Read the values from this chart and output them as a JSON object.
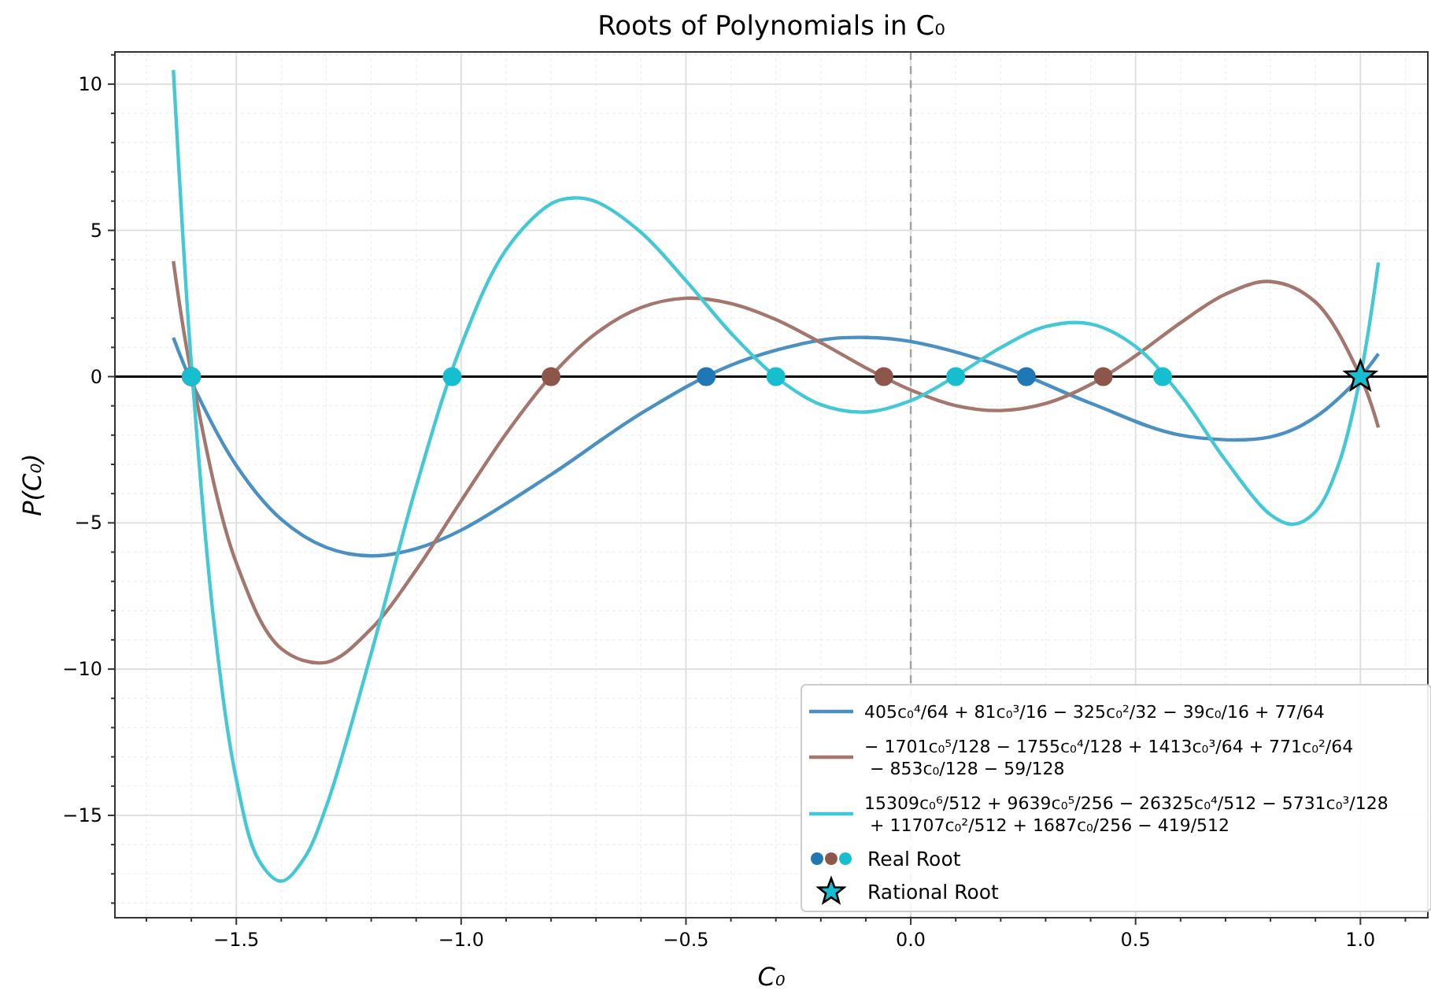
{
  "chart_data": {
    "type": "line",
    "title": "Roots of Polynomials in C₀",
    "xlabel": "C₀",
    "ylabel": "P(C₀)",
    "xlim": [
      -1.77,
      1.15
    ],
    "ylim": [
      -18.5,
      11.1
    ],
    "xticks": [
      {
        "value": -1.7,
        "label": null
      },
      {
        "value": -1.6,
        "label": null
      },
      {
        "value": -1.5,
        "label": "−1.5"
      },
      {
        "value": -1.4,
        "label": null
      },
      {
        "value": -1.3,
        "label": null
      },
      {
        "value": -1.2,
        "label": null
      },
      {
        "value": -1.1,
        "label": null
      },
      {
        "value": -1.0,
        "label": "−1.0"
      },
      {
        "value": -0.9,
        "label": null
      },
      {
        "value": -0.8,
        "label": null
      },
      {
        "value": -0.7,
        "label": null
      },
      {
        "value": -0.6,
        "label": null
      },
      {
        "value": -0.5,
        "label": "−0.5"
      },
      {
        "value": -0.4,
        "label": null
      },
      {
        "value": -0.3,
        "label": null
      },
      {
        "value": -0.2,
        "label": null
      },
      {
        "value": -0.1,
        "label": null
      },
      {
        "value": 0,
        "label": "0.0"
      },
      {
        "value": 0.1,
        "label": null
      },
      {
        "value": 0.2,
        "label": null
      },
      {
        "value": 0.3,
        "label": null
      },
      {
        "value": 0.4,
        "label": null
      },
      {
        "value": 0.5,
        "label": "0.5"
      },
      {
        "value": 0.6,
        "label": null
      },
      {
        "value": 0.7,
        "label": null
      },
      {
        "value": 0.8,
        "label": null
      },
      {
        "value": 0.9,
        "label": null
      },
      {
        "value": 1.0,
        "label": "1.0"
      },
      {
        "value": 1.1,
        "label": null
      }
    ],
    "yticks": [
      {
        "value": -18,
        "label": null
      },
      {
        "value": -17,
        "label": null
      },
      {
        "value": -16,
        "label": null
      },
      {
        "value": -15,
        "label": "−15"
      },
      {
        "value": -14,
        "label": null
      },
      {
        "value": -13,
        "label": null
      },
      {
        "value": -12,
        "label": null
      },
      {
        "value": -11,
        "label": null
      },
      {
        "value": -10,
        "label": "−10"
      },
      {
        "value": -9,
        "label": null
      },
      {
        "value": -8,
        "label": null
      },
      {
        "value": -7,
        "label": null
      },
      {
        "value": -6,
        "label": null
      },
      {
        "value": -5,
        "label": "−5"
      },
      {
        "value": -4,
        "label": null
      },
      {
        "value": -3,
        "label": null
      },
      {
        "value": -2,
        "label": null
      },
      {
        "value": -1,
        "label": null
      },
      0,
      {
        "value": 1,
        "label": null
      },
      {
        "value": 2,
        "label": null
      },
      {
        "value": 3,
        "label": null
      },
      {
        "value": 4,
        "label": null
      },
      5,
      {
        "value": 6,
        "label": null
      },
      {
        "value": 7,
        "label": null
      },
      {
        "value": 8,
        "label": null
      },
      {
        "value": 9,
        "label": null
      },
      10,
      {
        "value": 11,
        "label": null
      }
    ],
    "grid": true,
    "legend": "bottom right",
    "marker": "none",
    "line_style": "solid",
    "ref_lines": [
      {
        "axis": "y",
        "value": 0,
        "color": "#000000",
        "line_style": "solid"
      },
      {
        "axis": "x",
        "value": 0,
        "color": "#a0a0a0",
        "line_style": "dashed"
      }
    ],
    "series": [
      {
        "name": "405c₀⁴/64 + 81c₀³/16 − 325c₀²/32 − 39c₀/16 + 77/64",
        "color": "#4a90c2",
        "x": [
          -1.64,
          -1.6,
          -1.5,
          -1.4,
          -1.3,
          -1.2,
          -1.1,
          -1.0,
          -0.8,
          -0.6,
          -0.4,
          -0.2,
          -0.1,
          0,
          0.2,
          0.4,
          0.6,
          0.8,
          0.9,
          1.0,
          1.04
        ],
        "values": [
          1.33,
          -0.17,
          -3.04,
          -4.88,
          -5.84,
          -6.13,
          -5.88,
          -5.25,
          -3.35,
          -1.26,
          0.39,
          1.25,
          1.34,
          1.2,
          0.36,
          -0.91,
          -2.0,
          -2.06,
          -1.38,
          0,
          0.78
        ]
      },
      {
        "name": "− 1701c₀⁵/128 − 1755c₀⁴/128 + 1413c₀³/64 + 771c₀²/64 − 853c₀/128 − 59/128",
        "color": "#a3776d",
        "x": [
          -1.64,
          -1.6,
          -1.5,
          -1.4,
          -1.3,
          -1.2,
          -1.1,
          -1.0,
          -0.9,
          -0.8,
          -0.7,
          -0.6,
          -0.5,
          -0.4,
          -0.3,
          -0.2,
          -0.1,
          0,
          0.1,
          0.2,
          0.3,
          0.4,
          0.5,
          0.6,
          0.7,
          0.8,
          0.9,
          1.0,
          1.04
        ],
        "values": [
          3.95,
          0.1,
          -6.37,
          -9.3,
          -9.77,
          -8.62,
          -6.61,
          -4.25,
          -1.95,
          0.02,
          1.48,
          2.36,
          2.68,
          2.5,
          1.95,
          1.16,
          0.3,
          -0.46,
          -0.99,
          -1.16,
          -0.92,
          -0.27,
          0.71,
          1.84,
          2.82,
          3.25,
          2.55,
          0,
          -1.74
        ]
      },
      {
        "name": "15309c₀⁶/512 + 9639c₀⁵/256 − 26325c₀⁴/512 − 5731c₀³/128 + 11707c₀²/512 + 1687c₀/256 − 419/512",
        "color": "#44c8d6",
        "x": [
          -1.64,
          -1.62,
          -1.6,
          -1.55,
          -1.5,
          -1.45,
          -1.4,
          -1.35,
          -1.3,
          -1.2,
          -1.1,
          -1.0,
          -0.9,
          -0.8,
          -0.75,
          -0.7,
          -0.6,
          -0.5,
          -0.4,
          -0.3,
          -0.2,
          -0.1,
          0,
          0.1,
          0.2,
          0.3,
          0.4,
          0.5,
          0.6,
          0.7,
          0.8,
          0.85,
          0.9,
          0.95,
          1.0,
          1.04
        ],
        "values": [
          10.48,
          5.09,
          0.42,
          -8.37,
          -13.77,
          -16.53,
          -17.25,
          -16.49,
          -14.7,
          -9.46,
          -3.76,
          1.06,
          4.34,
          5.91,
          6.11,
          5.98,
          4.93,
          3.28,
          1.49,
          -0.01,
          -0.96,
          -1.21,
          -0.82,
          0.02,
          0.99,
          1.71,
          1.8,
          1.03,
          -0.64,
          -2.86,
          -4.72,
          -5.05,
          -4.62,
          -3.07,
          0,
          3.9
        ]
      },
      {
        "name": "Real Root",
        "type": "scatter",
        "marker": "circle",
        "x": [
          -1.6,
          -0.455,
          0.257,
          -1.6,
          -0.8,
          -0.06,
          0.428,
          -1.6,
          -1.02,
          -0.3,
          0.1,
          0.56
        ],
        "values": [
          0,
          0,
          0,
          0,
          0,
          0,
          0,
          0,
          0,
          0,
          0,
          0
        ],
        "colors": [
          "#1f77b4",
          "#1f77b4",
          "#1f77b4",
          "#8c564b",
          "#8c564b",
          "#8c564b",
          "#8c564b",
          "#17becf",
          "#17becf",
          "#17becf",
          "#17becf",
          "#17becf"
        ]
      },
      {
        "name": "Rational Root",
        "type": "scatter",
        "marker": "star",
        "x": [
          1.0
        ],
        "values": [
          0
        ],
        "colors": [
          "#17becf"
        ]
      }
    ]
  }
}
